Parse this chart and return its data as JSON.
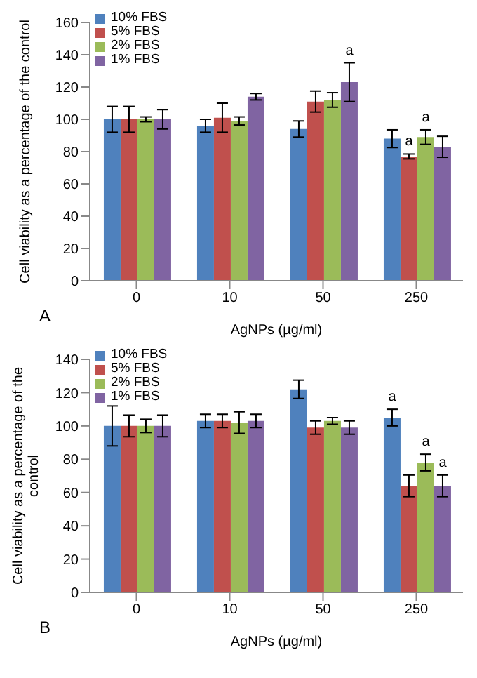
{
  "chart_data": [
    {
      "type": "bar",
      "xlabel": "AgNPs (µg/ml)",
      "ylabel": "Cell viability as a percentage of the control",
      "categories": [
        "0",
        "10",
        "50",
        "250"
      ],
      "ylim": [
        0,
        160
      ],
      "yticks": [
        0,
        20,
        40,
        60,
        80,
        100,
        120,
        140,
        160
      ],
      "grid": false,
      "legend": "top left",
      "series": [
        {
          "name": "10% FBS",
          "color": "#4f81bd",
          "values": [
            100,
            96,
            94,
            88
          ],
          "errors": [
            8,
            4,
            5,
            5.5
          ]
        },
        {
          "name": "5% FBS",
          "color": "#c0504d",
          "values": [
            100,
            101,
            111,
            77
          ],
          "errors": [
            8,
            9,
            6.5,
            1.5
          ]
        },
        {
          "name": "2% FBS",
          "color": "#9bbb59",
          "values": [
            100,
            99,
            112,
            89
          ],
          "errors": [
            1.5,
            2.5,
            4.5,
            4.5
          ]
        },
        {
          "name": "1% FBS",
          "color": "#8064a2",
          "values": [
            100,
            114,
            123,
            83
          ],
          "errors": [
            6,
            2,
            12,
            6.5
          ]
        }
      ],
      "annotations": [
        "A",
        "a",
        "a",
        "a"
      ]
    },
    {
      "type": "bar",
      "xlabel": "AgNPs (µg/ml)",
      "ylabel": "Cell viability as a percentage of the control",
      "categories": [
        "0",
        "10",
        "50",
        "250"
      ],
      "ylim": [
        0,
        140
      ],
      "yticks": [
        0,
        20,
        40,
        60,
        80,
        100,
        120,
        140
      ],
      "grid": false,
      "legend": "top left",
      "series": [
        {
          "name": "10% FBS",
          "color": "#4f81bd",
          "values": [
            100,
            103,
            122,
            105
          ],
          "errors": [
            12,
            4,
            5.5,
            5
          ]
        },
        {
          "name": "5% FBS",
          "color": "#c0504d",
          "values": [
            100,
            103,
            99,
            64
          ],
          "errors": [
            6.5,
            4,
            4,
            6.5
          ]
        },
        {
          "name": "2% FBS",
          "color": "#9bbb59",
          "values": [
            100,
            102,
            103,
            78
          ],
          "errors": [
            4,
            6.5,
            2,
            5
          ]
        },
        {
          "name": "1% FBS",
          "color": "#8064a2",
          "values": [
            100,
            103,
            99,
            64
          ],
          "errors": [
            6.5,
            4,
            4,
            6.5
          ]
        }
      ],
      "annotations": [
        "B",
        "a",
        "a",
        "a"
      ]
    }
  ]
}
